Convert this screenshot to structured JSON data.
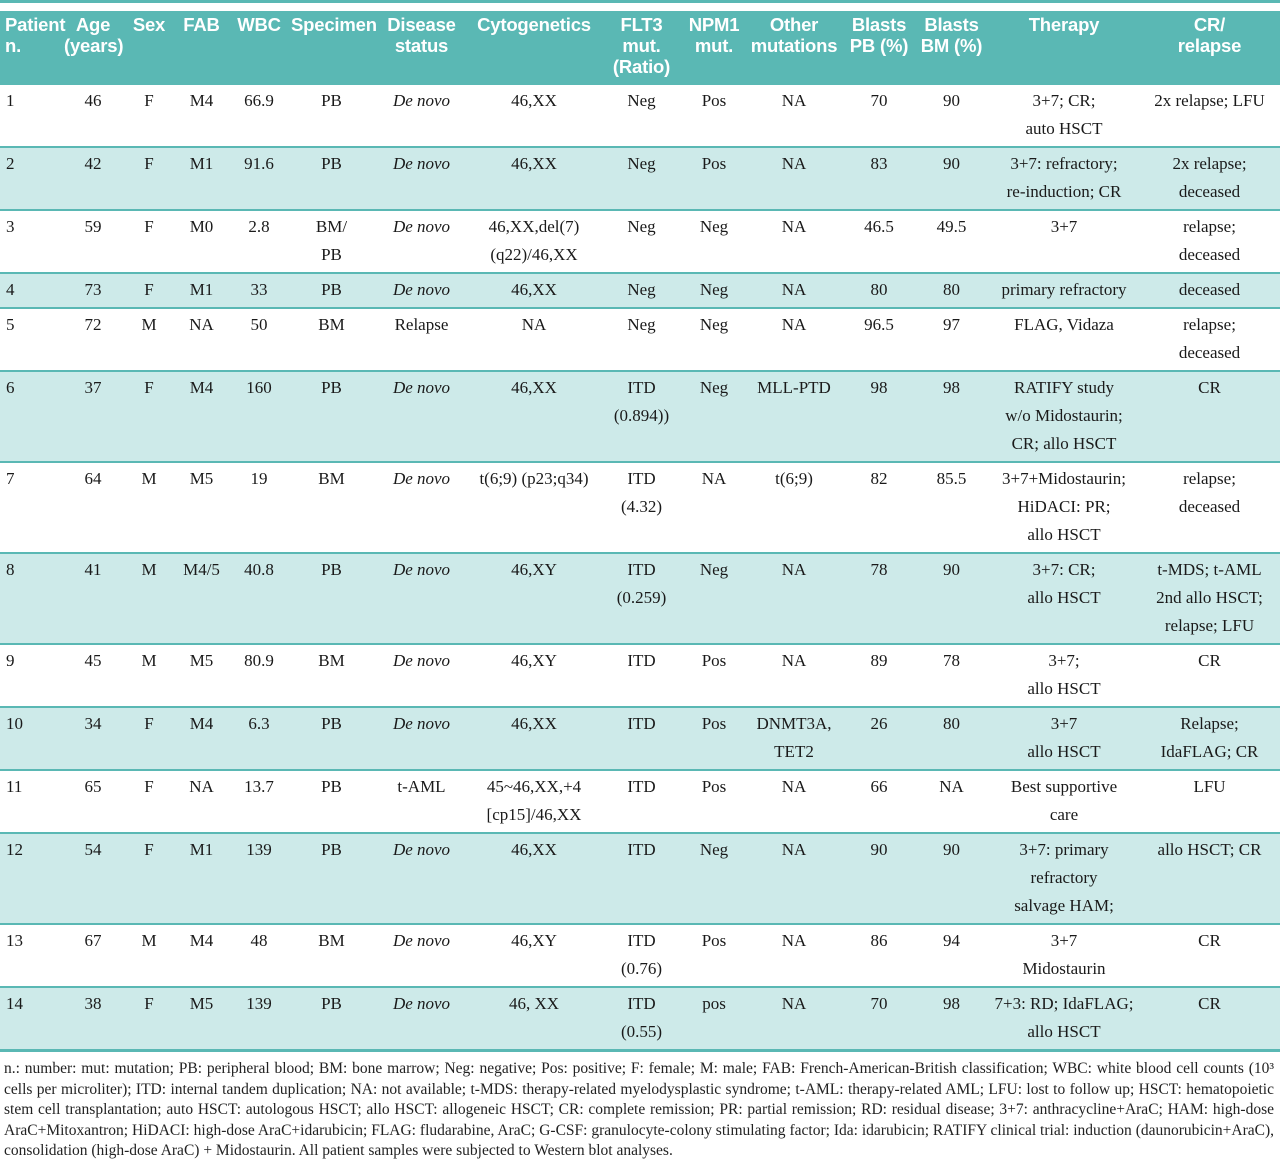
{
  "colors": {
    "header_bg": "#5ab8b4",
    "row_shaded": "#cdeae9",
    "rule": "#5ab8b4",
    "header_text": "#ffffff"
  },
  "table": {
    "columns": [
      {
        "label": "Patient\nn."
      },
      {
        "label": "Age\n(years)"
      },
      {
        "label": "Sex"
      },
      {
        "label": "FAB"
      },
      {
        "label": "WBC"
      },
      {
        "label": "Specimen"
      },
      {
        "label": "Disease\nstatus"
      },
      {
        "label": "Cytogenetics"
      },
      {
        "label": "FLT3 mut.\n(Ratio)"
      },
      {
        "label": "NPM1\nmut."
      },
      {
        "label": "Other\nmutations"
      },
      {
        "label": "Blasts\nPB (%)"
      },
      {
        "label": "Blasts\nBM (%)"
      },
      {
        "label": "Therapy"
      },
      {
        "label": "CR/\nrelapse"
      }
    ],
    "italic_values": [
      "De novo"
    ],
    "rows": [
      {
        "shaded": false,
        "cells": [
          "1",
          "46",
          "F",
          "M4",
          "66.9",
          "PB",
          "De novo",
          "46,XX",
          "Neg",
          "Pos",
          "NA",
          "70",
          "90",
          "3+7; CR;\nauto HSCT",
          "2x relapse; LFU"
        ]
      },
      {
        "shaded": true,
        "cells": [
          "2",
          "42",
          "F",
          "M1",
          "91.6",
          "PB",
          "De novo",
          "46,XX",
          "Neg",
          "Pos",
          "NA",
          "83",
          "90",
          "3+7: refractory;\nre-induction; CR",
          "2x relapse;\ndeceased"
        ]
      },
      {
        "shaded": false,
        "cells": [
          "3",
          "59",
          "F",
          "M0",
          "2.8",
          "BM/\nPB",
          "De novo",
          "46,XX,del(7)\n(q22)/46,XX",
          "Neg",
          "Neg",
          "NA",
          "46.5",
          "49.5",
          "3+7",
          "relapse;\ndeceased"
        ]
      },
      {
        "shaded": true,
        "cells": [
          "4",
          "73",
          "F",
          "M1",
          "33",
          "PB",
          "De novo",
          "46,XX",
          "Neg",
          "Neg",
          "NA",
          "80",
          "80",
          "primary refractory",
          "deceased"
        ]
      },
      {
        "shaded": false,
        "cells": [
          "5",
          "72",
          "M",
          "NA",
          "50",
          "BM",
          "Relapse",
          "NA",
          "Neg",
          "Neg",
          "NA",
          "96.5",
          "97",
          "FLAG, Vidaza",
          "relapse;\ndeceased"
        ]
      },
      {
        "shaded": true,
        "cells": [
          "6",
          "37",
          "F",
          "M4",
          "160",
          "PB",
          "De novo",
          "46,XX",
          "ITD\n(0.894))",
          "Neg",
          "MLL-PTD",
          "98",
          "98",
          "RATIFY study\nw/o Midostaurin;\nCR; allo HSCT",
          "CR"
        ]
      },
      {
        "shaded": false,
        "cells": [
          "7",
          "64",
          "M",
          "M5",
          "19",
          "BM",
          "De novo",
          "t(6;9) (p23;q34)",
          "ITD\n(4.32)",
          "NA",
          "t(6;9)",
          "82",
          "85.5",
          "3+7+Midostaurin;\nHiDACI: PR;\nallo HSCT",
          "relapse;\ndeceased"
        ]
      },
      {
        "shaded": true,
        "cells": [
          "8",
          "41",
          "M",
          "M4/5",
          "40.8",
          "PB",
          "De novo",
          "46,XY",
          "ITD\n(0.259)",
          "Neg",
          "NA",
          "78",
          "90",
          "3+7: CR;\nallo HSCT",
          "t-MDS; t-AML\n2nd allo HSCT;\nrelapse; LFU"
        ]
      },
      {
        "shaded": false,
        "cells": [
          "9",
          "45",
          "M",
          "M5",
          "80.9",
          "BM",
          "De novo",
          "46,XY",
          "ITD",
          "Pos",
          "NA",
          "89",
          "78",
          "3+7;\nallo HSCT",
          "CR"
        ]
      },
      {
        "shaded": true,
        "cells": [
          "10",
          "34",
          "F",
          "M4",
          "6.3",
          "PB",
          "De novo",
          "46,XX",
          "ITD",
          "Pos",
          "DNMT3A,\nTET2",
          "26",
          "80",
          "3+7\nallo HSCT",
          "Relapse;\nIdaFLAG; CR"
        ]
      },
      {
        "shaded": false,
        "cells": [
          "11",
          "65",
          "F",
          "NA",
          "13.7",
          "PB",
          "t-AML",
          "45~46,XX,+4\n[cp15]/46,XX",
          "ITD",
          "Pos",
          "NA",
          "66",
          "NA",
          "Best supportive\ncare",
          "LFU"
        ]
      },
      {
        "shaded": true,
        "cells": [
          "12",
          "54",
          "F",
          "M1",
          "139",
          "PB",
          "De novo",
          "46,XX",
          "ITD",
          "Neg",
          "NA",
          "90",
          "90",
          "3+7: primary\nrefractory\nsalvage HAM;",
          "allo HSCT; CR"
        ]
      },
      {
        "shaded": false,
        "cells": [
          "13",
          "67",
          "M",
          "M4",
          "48",
          "BM",
          "De novo",
          "46,XY",
          "ITD\n(0.76)",
          "Pos",
          "NA",
          "86",
          "94",
          "3+7\nMidostaurin",
          "CR"
        ]
      },
      {
        "shaded": true,
        "cells": [
          "14",
          "38",
          "F",
          "M5",
          "139",
          "PB",
          "De novo",
          "46, XX",
          "ITD\n(0.55)",
          "pos",
          "NA",
          "70",
          "98",
          "7+3: RD; IdaFLAG;\nallo HSCT",
          "CR"
        ]
      }
    ]
  },
  "footnote": "n.: number: mut: mutation; PB: peripheral blood; BM: bone marrow; Neg: negative; Pos: positive; F: female; M: male; FAB: French-American-British classification; WBC: white blood cell counts (10³ cells per microliter); ITD: internal tandem duplication; NA: not available; t-MDS: therapy-related myelodysplastic syndrome; t-AML: therapy-related AML; LFU: lost to follow up; HSCT: hematopoietic stem cell transplantation; auto HSCT: autologous HSCT; allo HSCT: allogeneic HSCT; CR: complete remission; PR: partial remission; RD: residual disease; 3+7: anthracycline+AraC; HAM: high-dose AraC+Mitoxantron; HiDACI: high-dose AraC+idarubicin; FLAG: fludarabine, AraC; G-CSF: granulocyte-colony stimulating factor; Ida: idarubicin; RATIFY clinical trial: induction (daunorubicin+AraC), consolidation (high-dose AraC) + Midostaurin. All patient samples were subjected to Western blot analyses."
}
